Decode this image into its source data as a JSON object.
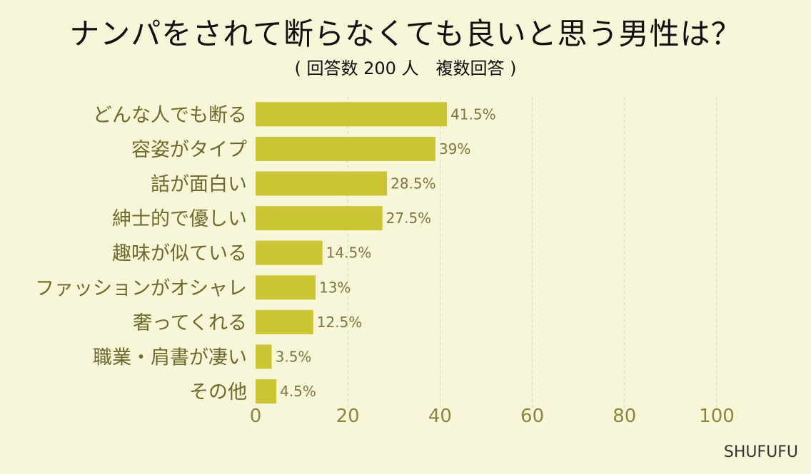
{
  "title": "ナンパをされて断らなくても良いと思う男性は？",
  "subtitle": "( 回答数 200 人　複数回答 )",
  "brand": "SHUFUFU",
  "colors": {
    "bar": "#cbc434",
    "background": "#f7f6d8",
    "grid": "#d9d6b0"
  },
  "chart_data": {
    "type": "bar",
    "orientation": "horizontal",
    "categories": [
      "どんな人でも断る",
      "容姿がタイプ",
      "話が面白い",
      "紳士的で優しい",
      "趣味が似ている",
      "ファッションがオシャレ",
      "奢ってくれる",
      "職業・肩書が凄い",
      "その他"
    ],
    "values": [
      41.5,
      39,
      28.5,
      27.5,
      14.5,
      13,
      12.5,
      3.5,
      4.5
    ],
    "value_labels": [
      "41.5%",
      "39%",
      "28.5%",
      "27.5%",
      "14.5%",
      "13%",
      "12.5%",
      "3.5%",
      "4.5%"
    ],
    "xlim": [
      0,
      100
    ],
    "xticks": [
      0,
      20,
      40,
      60,
      80,
      100
    ],
    "grid": true
  }
}
